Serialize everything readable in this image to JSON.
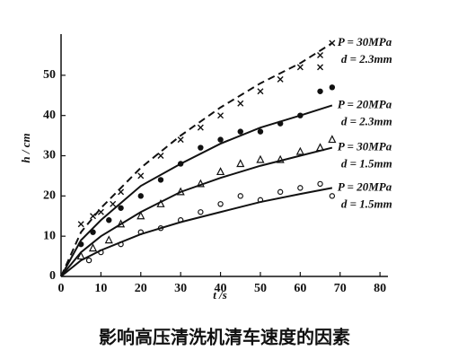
{
  "chart_data": {
    "type": "scatter",
    "title": "影响高压清洗机清车速度的因素",
    "x_label": "t /s",
    "y_label": "h / cm",
    "xlim": [
      0,
      82
    ],
    "ylim": [
      0,
      58
    ],
    "xticks": [
      0,
      10,
      20,
      30,
      40,
      50,
      60,
      70,
      80
    ],
    "yticks": [
      0,
      10,
      20,
      30,
      40,
      50
    ],
    "color": "#111111",
    "series": [
      {
        "name": "P = 30MPa d = 2.3mm",
        "label_lines": [
          "P = 30MPa",
          "d = 2.3mm"
        ],
        "marker": "cross",
        "line_style": "dashed",
        "points": {
          "x": [
            5,
            8,
            10,
            13,
            15,
            20,
            25,
            30,
            35,
            40,
            45,
            50,
            55,
            60,
            65,
            68,
            65
          ],
          "values": [
            13,
            15,
            16,
            18,
            21,
            25,
            30,
            34,
            37,
            40,
            43,
            46,
            49,
            52,
            55,
            58,
            52
          ]
        },
        "curve": {
          "x": [
            0,
            5,
            10,
            20,
            30,
            40,
            50,
            60,
            68
          ],
          "values": [
            0,
            11,
            17,
            27,
            35,
            42,
            48,
            53,
            58
          ]
        }
      },
      {
        "name": "P = 20MPa d = 2.3mm",
        "label_lines": [
          "P = 20MPa",
          "d = 2.3mm"
        ],
        "marker": "dot",
        "line_style": "solid",
        "points": {
          "x": [
            5,
            8,
            12,
            15,
            20,
            25,
            30,
            35,
            40,
            45,
            50,
            55,
            60,
            65,
            68
          ],
          "values": [
            8,
            11,
            14,
            17,
            20,
            24,
            28,
            32,
            34,
            36,
            36,
            38,
            40,
            46,
            47
          ]
        },
        "curve": {
          "x": [
            0,
            5,
            10,
            20,
            30,
            40,
            50,
            60,
            68
          ],
          "values": [
            0,
            9,
            14,
            22.5,
            28,
            33,
            37,
            40,
            42.5
          ]
        }
      },
      {
        "name": "P = 30MPa d = 1.5mm",
        "label_lines": [
          "P = 30MPa",
          "d = 1.5mm"
        ],
        "marker": "triangle",
        "line_style": "solid",
        "points": {
          "x": [
            5,
            8,
            12,
            15,
            20,
            25,
            30,
            35,
            40,
            45,
            50,
            55,
            60,
            65,
            68
          ],
          "values": [
            5,
            7,
            9,
            13,
            15,
            18,
            21,
            23,
            26,
            28,
            29,
            29,
            31,
            32,
            34
          ]
        },
        "curve": {
          "x": [
            0,
            5,
            10,
            20,
            30,
            40,
            50,
            60,
            68
          ],
          "values": [
            0,
            6,
            10,
            16,
            21,
            24.5,
            27.5,
            30,
            32
          ]
        }
      },
      {
        "name": "P = 20MPa d = 1.5mm",
        "label_lines": [
          "P = 20MPa",
          "d = 1.5mm"
        ],
        "marker": "circle",
        "line_style": "solid",
        "points": {
          "x": [
            7,
            10,
            15,
            20,
            25,
            30,
            35,
            40,
            45,
            50,
            55,
            60,
            65,
            68
          ],
          "values": [
            4,
            6,
            8,
            11,
            12,
            14,
            16,
            18,
            20,
            19,
            21,
            22,
            23,
            20
          ]
        },
        "curve": {
          "x": [
            0,
            5,
            10,
            20,
            30,
            40,
            50,
            60,
            68
          ],
          "values": [
            0,
            4,
            6.5,
            10.5,
            13.5,
            16,
            18.5,
            20.5,
            22
          ]
        }
      }
    ]
  }
}
